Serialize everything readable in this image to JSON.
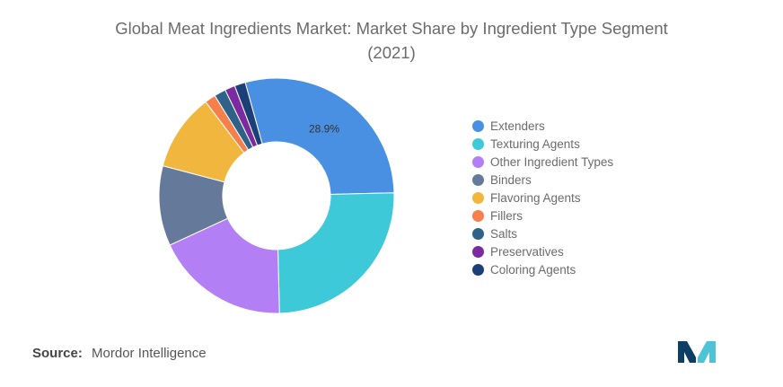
{
  "chart_data": {
    "type": "pie",
    "donut": true,
    "title": "Global Meat Ingredients Market: Market Share by Ingredient Type Segment",
    "subtitle": "(2021)",
    "slices": [
      {
        "name": "Extenders",
        "value": 28.9,
        "color": "#4a90e2",
        "label": "28.9%"
      },
      {
        "name": "Texturing Agents",
        "value": 25.0,
        "color": "#3ec9d9",
        "label": ""
      },
      {
        "name": "Other Ingredient Types",
        "value": 18.5,
        "color": "#b27ff5",
        "label": ""
      },
      {
        "name": "Binders",
        "value": 11.0,
        "color": "#65799a",
        "label": ""
      },
      {
        "name": "Flavoring Agents",
        "value": 10.6,
        "color": "#f0b63e",
        "label": ""
      },
      {
        "name": "Fillers",
        "value": 1.5,
        "color": "#f5804b",
        "label": ""
      },
      {
        "name": "Salts",
        "value": 1.6,
        "color": "#2f6288",
        "label": ""
      },
      {
        "name": "Preservatives",
        "value": 1.4,
        "color": "#7b2a9f",
        "label": ""
      },
      {
        "name": "Coloring Agents",
        "value": 1.5,
        "color": "#1d3f78",
        "label": ""
      }
    ],
    "legend_position": "right"
  },
  "source": {
    "label": "Source:",
    "text": "Mordor Intelligence"
  },
  "logo_colors": {
    "dark": "#0d3f66",
    "light": "#4fc3d6"
  }
}
